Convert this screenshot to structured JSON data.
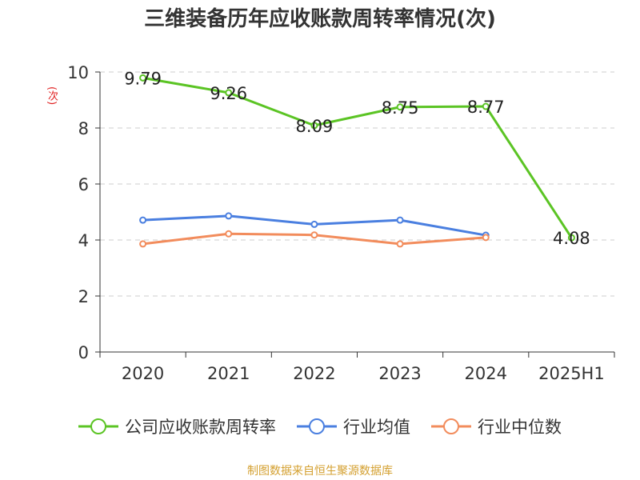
{
  "chart_data": {
    "type": "line",
    "title": "三维装备历年应收账款周转率情况(次)",
    "ylabel": "(次)",
    "xlabel": "",
    "categories": [
      "2020",
      "2021",
      "2022",
      "2023",
      "2024",
      "2025H1"
    ],
    "ylim": [
      0,
      10
    ],
    "yticks": [
      "0",
      "2",
      "4",
      "6",
      "8",
      "10"
    ],
    "grid": true,
    "legend_position": "bottom",
    "series": [
      {
        "name": "公司应收账款周转率",
        "color": "#5bc424",
        "values": [
          9.79,
          9.26,
          8.09,
          8.75,
          8.77,
          4.08
        ],
        "labels": [
          "9.79",
          "9.26",
          "8.09",
          "8.75",
          "8.77",
          "4.08"
        ]
      },
      {
        "name": "行业均值",
        "color": "#4a7fe0",
        "values": [
          4.71,
          4.86,
          4.56,
          4.71,
          4.17,
          null
        ]
      },
      {
        "name": "行业中位数",
        "color": "#f28c5c",
        "values": [
          3.86,
          4.22,
          4.18,
          3.86,
          4.09,
          null
        ]
      }
    ]
  },
  "source_note": "制图数据来自恒生聚源数据库"
}
